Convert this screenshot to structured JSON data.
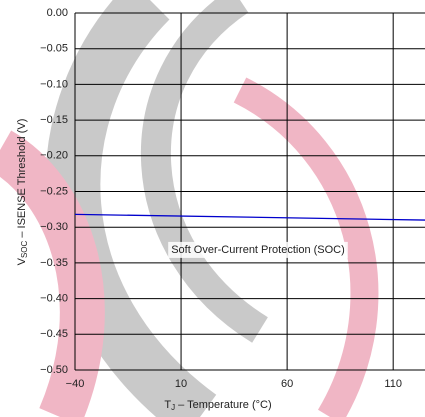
{
  "chart_data": {
    "type": "line",
    "xlabel": [
      "T",
      "J",
      " – Temperature (°C)"
    ],
    "ylabel": [
      "V",
      "SOC",
      " – ISENSE Threshold (V)"
    ],
    "annotation": "Soft Over-Current Protection (SOC)",
    "x": [
      -40,
      125
    ],
    "series": [
      {
        "color": "#0000cc",
        "values": [
          -0.282,
          -0.29
        ]
      }
    ],
    "xlim": [
      -40,
      125
    ],
    "ylim": [
      -0.5,
      0
    ],
    "xticks": [
      {
        "value": -40,
        "label": "−40"
      },
      10,
      60,
      110
    ],
    "yticks": [
      {
        "value": 0,
        "label": "0.00"
      },
      {
        "value": -0.05,
        "label": "−0.05"
      },
      {
        "value": -0.1,
        "label": "−0.10"
      },
      {
        "value": -0.15,
        "label": "−0.15"
      },
      {
        "value": -0.2,
        "label": "−0.20"
      },
      {
        "value": -0.25,
        "label": "−0.25"
      },
      {
        "value": -0.3,
        "label": "−0.30"
      },
      {
        "value": -0.35,
        "label": "−0.35"
      },
      {
        "value": -0.4,
        "label": "−0.40"
      },
      {
        "value": -0.45,
        "label": "−0.45"
      },
      {
        "value": -0.5,
        "label": "−0.50"
      }
    ],
    "grid": true
  }
}
